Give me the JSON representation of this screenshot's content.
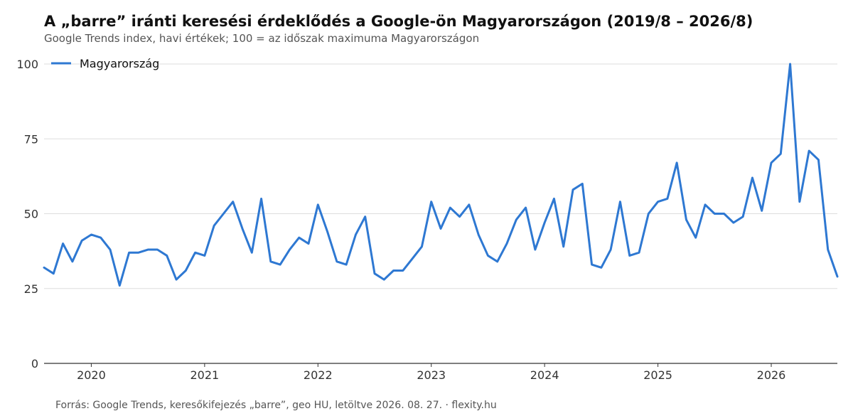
{
  "title": "A „barre” iránti keresési érdeklődés a Google-ön Magyarországon (2019/8 – 2026/8)",
  "subtitle": "Google Trends index, havi értékek; 100 = az időszak maximuma Magyarországon",
  "source": "Forrás: Google Trends, keresőkifejezés „barre”, geo HU, letöltve 2026. 08. 27. · flexity.hu",
  "colors": {
    "series": "#2e78d2",
    "grid": "#dddddd",
    "axis": "#333333"
  },
  "chart_data": {
    "type": "line",
    "xlabel": "",
    "ylabel": "",
    "ylim": [
      0,
      100
    ],
    "yticks": [
      0,
      25,
      50,
      75,
      100
    ],
    "xticks": [
      "2020",
      "2021",
      "2022",
      "2023",
      "2024",
      "2025",
      "2026"
    ],
    "xrange": [
      "2019-08",
      "2026-08"
    ],
    "grid": "horizontal",
    "legend": "top-left",
    "x": [
      "2019-08",
      "2019-09",
      "2019-10",
      "2019-11",
      "2019-12",
      "2020-01",
      "2020-02",
      "2020-03",
      "2020-04",
      "2020-05",
      "2020-06",
      "2020-07",
      "2020-08",
      "2020-09",
      "2020-10",
      "2020-11",
      "2020-12",
      "2021-01",
      "2021-02",
      "2021-03",
      "2021-04",
      "2021-05",
      "2021-06",
      "2021-07",
      "2021-08",
      "2021-09",
      "2021-10",
      "2021-11",
      "2021-12",
      "2022-01",
      "2022-02",
      "2022-03",
      "2022-04",
      "2022-05",
      "2022-06",
      "2022-07",
      "2022-08",
      "2022-09",
      "2022-10",
      "2022-11",
      "2022-12",
      "2023-01",
      "2023-02",
      "2023-03",
      "2023-04",
      "2023-05",
      "2023-06",
      "2023-07",
      "2023-08",
      "2023-09",
      "2023-10",
      "2023-11",
      "2023-12",
      "2024-01",
      "2024-02",
      "2024-03",
      "2024-04",
      "2024-05",
      "2024-06",
      "2024-07",
      "2024-08",
      "2024-09",
      "2024-10",
      "2024-11",
      "2024-12",
      "2025-01",
      "2025-02",
      "2025-03",
      "2025-04",
      "2025-05",
      "2025-06",
      "2025-07",
      "2025-08",
      "2025-09",
      "2025-10",
      "2025-11",
      "2025-12",
      "2026-01",
      "2026-02",
      "2026-03",
      "2026-04",
      "2026-05",
      "2026-06",
      "2026-07",
      "2026-08"
    ],
    "series": [
      {
        "name": "Magyarország",
        "values": [
          32,
          30,
          40,
          34,
          41,
          43,
          42,
          38,
          26,
          37,
          37,
          38,
          38,
          36,
          28,
          31,
          37,
          36,
          46,
          50,
          54,
          45,
          37,
          55,
          34,
          33,
          38,
          42,
          40,
          53,
          44,
          34,
          33,
          43,
          49,
          30,
          28,
          31,
          31,
          35,
          39,
          54,
          45,
          52,
          49,
          53,
          43,
          36,
          34,
          40,
          48,
          52,
          38,
          47,
          55,
          39,
          58,
          60,
          33,
          32,
          38,
          54,
          36,
          37,
          50,
          54,
          55,
          67,
          48,
          42,
          53,
          50,
          50,
          47,
          49,
          62,
          51,
          67,
          70,
          100,
          54,
          71,
          68,
          38,
          29
        ]
      }
    ]
  }
}
